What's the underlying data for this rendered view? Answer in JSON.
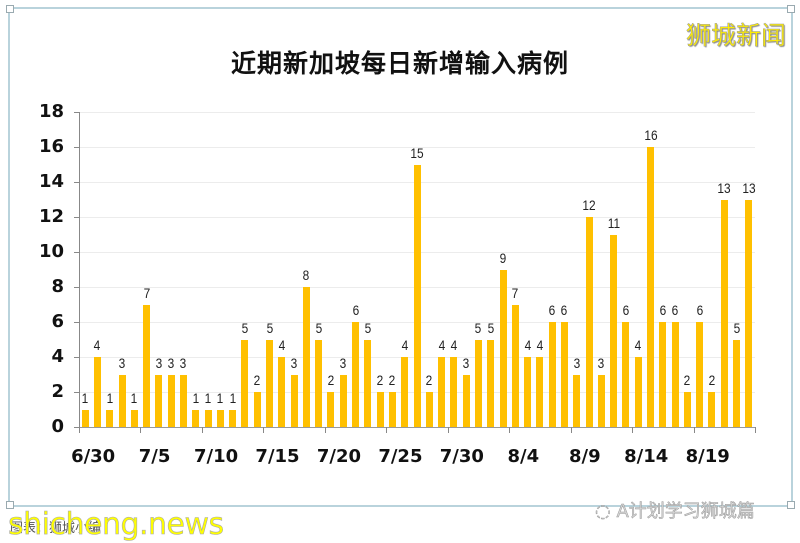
{
  "header": {
    "title": "近期新加坡每日新增输入病例",
    "brand_watermark": "狮城新闻"
  },
  "footer": {
    "source_text": "图表：狮城小编",
    "site_watermark": "shicheng.news",
    "wechat_watermark": "A计划学习狮城篇"
  },
  "colors": {
    "bar": "#FFC000",
    "frame_border": "#B9D3DC",
    "brand_watermark": "#FFEE00"
  },
  "chart_data": {
    "type": "bar",
    "title": "近期新加坡每日新增输入病例",
    "xlabel": "",
    "ylabel": "",
    "ylim": [
      0,
      18
    ],
    "yticks": [
      0,
      2,
      4,
      6,
      8,
      10,
      12,
      14,
      16,
      18
    ],
    "xtick_labels": [
      "6/30",
      "7/5",
      "7/10",
      "7/15",
      "7/20",
      "7/25",
      "7/30",
      "8/4",
      "8/9",
      "8/14",
      "8/19"
    ],
    "grid": true,
    "legend": "none",
    "data_labels": true,
    "categories": [
      "6/30",
      "7/1",
      "7/2",
      "7/3",
      "7/4",
      "7/5",
      "7/6",
      "7/7",
      "7/8",
      "7/9",
      "7/10",
      "7/11",
      "7/12",
      "7/13",
      "7/14",
      "7/15",
      "7/16",
      "7/17",
      "7/18",
      "7/19",
      "7/20",
      "7/21",
      "7/22",
      "7/23",
      "7/24",
      "7/25",
      "7/26",
      "7/27",
      "7/28",
      "7/29",
      "7/30",
      "7/31",
      "8/1",
      "8/2",
      "8/3",
      "8/4",
      "8/5",
      "8/6",
      "8/7",
      "8/8",
      "8/9",
      "8/10",
      "8/11",
      "8/12",
      "8/13",
      "8/14",
      "8/15",
      "8/16",
      "8/17",
      "8/18",
      "8/19",
      "8/20",
      "8/21",
      "8/22",
      "8/23"
    ],
    "values": [
      1,
      4,
      1,
      3,
      1,
      7,
      3,
      3,
      3,
      1,
      1,
      1,
      1,
      5,
      2,
      5,
      4,
      3,
      8,
      5,
      2,
      3,
      6,
      5,
      2,
      2,
      4,
      15,
      2,
      4,
      4,
      3,
      5,
      5,
      9,
      7,
      4,
      4,
      6,
      6,
      3,
      12,
      3,
      11,
      6,
      4,
      16,
      6,
      6,
      2,
      6,
      2,
      13,
      5,
      13
    ]
  }
}
